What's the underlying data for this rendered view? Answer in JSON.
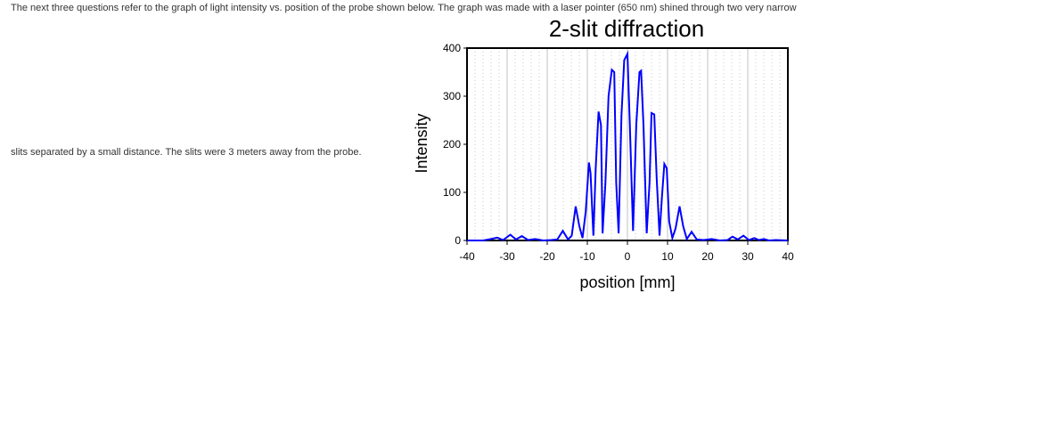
{
  "intro": {
    "line1": "The next three questions refer to the graph of light intensity vs. position of the probe shown below. The graph was made with a laser pointer (650 nm) shined through two very narrow",
    "line2": "slits separated by a small distance. The slits were 3 meters away from the probe."
  },
  "chart_data": {
    "type": "line",
    "title": "2-slit diffraction",
    "xlabel": "position [mm]",
    "ylabel": "Intensity",
    "xlim": [
      -40,
      40
    ],
    "ylim": [
      0,
      400
    ],
    "xticks": [
      "-40",
      "-30",
      "-20",
      "-10",
      "0",
      "10",
      "20",
      "30",
      "40"
    ],
    "yticks": [
      "0",
      "100",
      "200",
      "300",
      "400"
    ],
    "grid": "vertical major every 10 mm (solid gray), minor every 2 mm (dotted)",
    "legend": null,
    "line_color": "#0000ff",
    "series": [
      {
        "name": "Intensity",
        "x": [
          -40,
          -36,
          -34,
          -32.5,
          -31,
          -29.2,
          -27.8,
          -26.3,
          -24.8,
          -23,
          -21,
          -19,
          -17.5,
          -16.1,
          -14.8,
          -13.9,
          -12.9,
          -12,
          -11.2,
          -10.4,
          -9.6,
          -9.2,
          -8.5,
          -7.9,
          -7.2,
          -6.6,
          -6.2,
          -5.5,
          -4.7,
          -3.9,
          -3.3,
          -2.8,
          -2.2,
          -1.5,
          -0.8,
          0,
          0.6,
          1.4,
          2.2,
          3.0,
          3.4,
          4.0,
          4.8,
          5.5,
          6.0,
          6.7,
          7.3,
          8.0,
          8.6,
          9.2,
          9.8,
          10.4,
          11.2,
          12.0,
          13.0,
          13.9,
          14.8,
          16.0,
          17.3,
          19,
          21,
          23,
          25,
          26.2,
          27.5,
          28.9,
          30.3,
          31.6,
          32.8,
          34,
          35.3,
          37,
          40
        ],
        "y": [
          0,
          0,
          3,
          6,
          1,
          12,
          2,
          9,
          1,
          3,
          0,
          1,
          2,
          20,
          2,
          10,
          71,
          30,
          5,
          60,
          162,
          140,
          10,
          150,
          268,
          240,
          15,
          120,
          300,
          355,
          350,
          120,
          15,
          260,
          375,
          388,
          240,
          20,
          240,
          350,
          353,
          240,
          15,
          120,
          265,
          262,
          130,
          10,
          90,
          159,
          150,
          40,
          5,
          25,
          71,
          30,
          3,
          18,
          2,
          1,
          3,
          0,
          1,
          8,
          2,
          10,
          1,
          5,
          1,
          3,
          0,
          1,
          0
        ]
      }
    ]
  }
}
